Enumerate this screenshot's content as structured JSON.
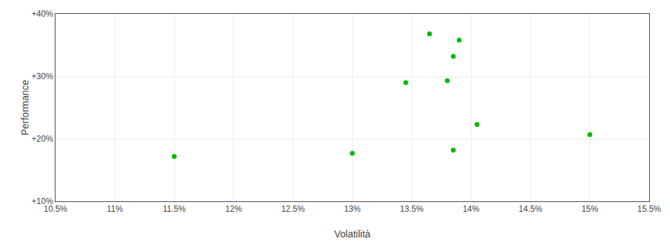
{
  "chart_data": {
    "type": "scatter",
    "xlabel": "Volatilità",
    "ylabel": "Performance",
    "color": "#00bb00",
    "x": [
      0.115,
      0.13,
      0.1345,
      0.138,
      0.1365,
      0.139,
      0.1385,
      0.1405,
      0.1385,
      0.15
    ],
    "values": [
      0.172,
      0.177,
      0.29,
      0.293,
      0.368,
      0.358,
      0.332,
      0.223,
      0.182,
      0.207
    ],
    "xlim": [
      0.105,
      0.155
    ],
    "ylim": [
      0.1,
      0.4
    ],
    "xticks": [
      {
        "value": 0.105,
        "label": "10.5%"
      },
      {
        "value": 0.11,
        "label": "11%"
      },
      {
        "value": 0.115,
        "label": "11.5%"
      },
      {
        "value": 0.12,
        "label": "12%"
      },
      {
        "value": 0.125,
        "label": "12.5%"
      },
      {
        "value": 0.13,
        "label": "13%"
      },
      {
        "value": 0.135,
        "label": "13.5%"
      },
      {
        "value": 0.14,
        "label": "14%"
      },
      {
        "value": 0.145,
        "label": "14.5%"
      },
      {
        "value": 0.15,
        "label": "15%"
      },
      {
        "value": 0.155,
        "label": "15.5%"
      }
    ],
    "yticks": [
      {
        "value": 0.1,
        "label": "+10%"
      },
      {
        "value": 0.2,
        "label": "+20%"
      },
      {
        "value": 0.3,
        "label": "+30%"
      },
      {
        "value": 0.4,
        "label": "+40%"
      }
    ],
    "grid": true
  }
}
